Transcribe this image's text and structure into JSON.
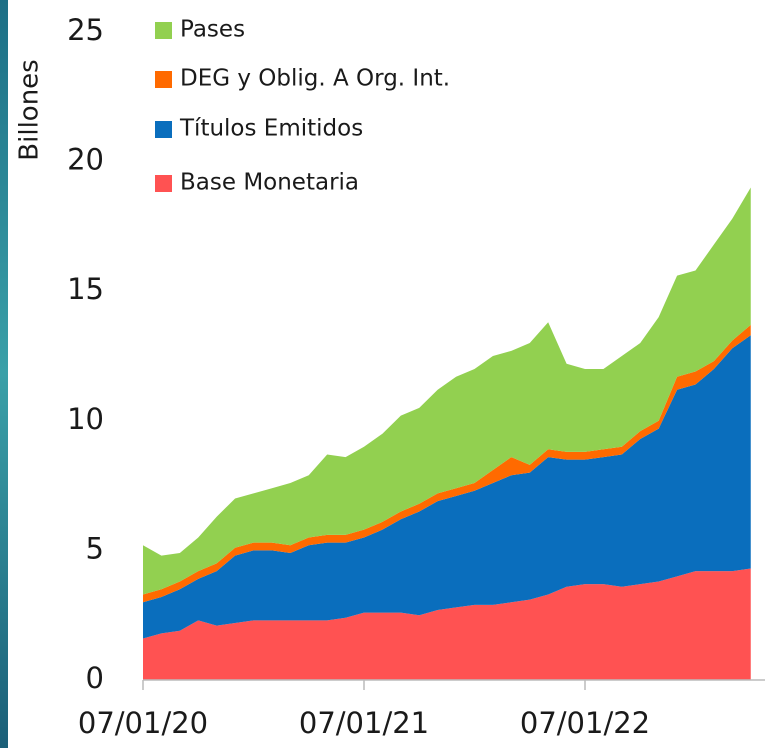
{
  "chart_data": {
    "type": "stacked_area",
    "y_label": "Billones",
    "categories": [
      "07/01/20",
      null,
      null,
      null,
      null,
      null,
      null,
      null,
      null,
      null,
      null,
      null,
      "07/01/21",
      null,
      null,
      null,
      null,
      null,
      null,
      null,
      null,
      null,
      null,
      null,
      "07/01/22",
      null,
      null,
      null,
      null,
      null,
      null,
      null,
      null,
      null
    ],
    "series": [
      {
        "name": "Base Monetaria",
        "color": "#ff5252",
        "values": [
          1.6,
          1.8,
          1.9,
          2.3,
          2.1,
          2.2,
          2.3,
          2.3,
          2.3,
          2.3,
          2.3,
          2.4,
          2.6,
          2.6,
          2.6,
          2.5,
          2.7,
          2.8,
          2.9,
          2.9,
          3.0,
          3.1,
          3.3,
          3.6,
          3.7,
          3.7,
          3.6,
          3.7,
          3.8,
          4.0,
          4.2,
          4.2,
          4.2,
          4.3
        ]
      },
      {
        "name": "Títulos Emitidos",
        "color": "#0a6ebd",
        "values": [
          1.4,
          1.4,
          1.6,
          1.6,
          2.1,
          2.6,
          2.7,
          2.7,
          2.6,
          2.9,
          3.0,
          2.9,
          2.9,
          3.2,
          3.6,
          4.0,
          4.2,
          4.3,
          4.4,
          4.7,
          4.9,
          4.9,
          5.3,
          4.9,
          4.8,
          4.9,
          5.1,
          5.6,
          5.9,
          7.2,
          7.2,
          7.8,
          8.6,
          9.0
        ]
      },
      {
        "name": "DEG y Oblig. A Org. Int.",
        "color": "#ff6a00",
        "values": [
          0.3,
          0.3,
          0.3,
          0.3,
          0.3,
          0.3,
          0.3,
          0.3,
          0.3,
          0.3,
          0.3,
          0.3,
          0.3,
          0.3,
          0.3,
          0.3,
          0.3,
          0.3,
          0.3,
          0.5,
          0.7,
          0.3,
          0.3,
          0.3,
          0.3,
          0.3,
          0.3,
          0.3,
          0.3,
          0.5,
          0.5,
          0.3,
          0.3,
          0.4
        ]
      },
      {
        "name": "Pases",
        "color": "#92d050",
        "values": [
          1.9,
          1.3,
          1.1,
          1.3,
          1.8,
          1.9,
          1.9,
          2.1,
          2.4,
          2.4,
          3.1,
          3.0,
          3.2,
          3.4,
          3.7,
          3.7,
          4.0,
          4.3,
          4.4,
          4.4,
          4.1,
          4.7,
          4.9,
          3.4,
          3.2,
          3.1,
          3.5,
          3.4,
          4.0,
          3.9,
          3.9,
          4.5,
          4.7,
          5.3
        ]
      }
    ],
    "ylim": [
      0,
      25
    ],
    "yticks": [
      0,
      5,
      10,
      15,
      20,
      25
    ],
    "legend": "top-left"
  }
}
